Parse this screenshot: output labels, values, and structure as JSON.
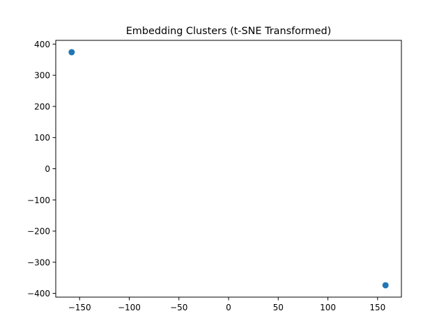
{
  "chart_data": {
    "type": "scatter",
    "title": "Embedding Clusters (t-SNE Transformed)",
    "xlabel": "",
    "ylabel": "",
    "xlim": [
      -174,
      174
    ],
    "ylim": [
      -412,
      412
    ],
    "x_ticks": [
      -150,
      -100,
      -50,
      0,
      50,
      100,
      150
    ],
    "x_tick_labels": [
      "−150",
      "−100",
      "−50",
      "0",
      "50",
      "100",
      "150"
    ],
    "y_ticks": [
      -400,
      -300,
      -200,
      -100,
      0,
      100,
      200,
      300,
      400
    ],
    "y_tick_labels": [
      "−400",
      "−300",
      "−200",
      "−100",
      "0",
      "100",
      "200",
      "300",
      "400"
    ],
    "grid": false,
    "legend": "none",
    "series": [
      {
        "color": "#1f77b4",
        "points": [
          {
            "x": -158,
            "y": 374
          },
          {
            "x": 158,
            "y": -374
          }
        ]
      }
    ]
  }
}
